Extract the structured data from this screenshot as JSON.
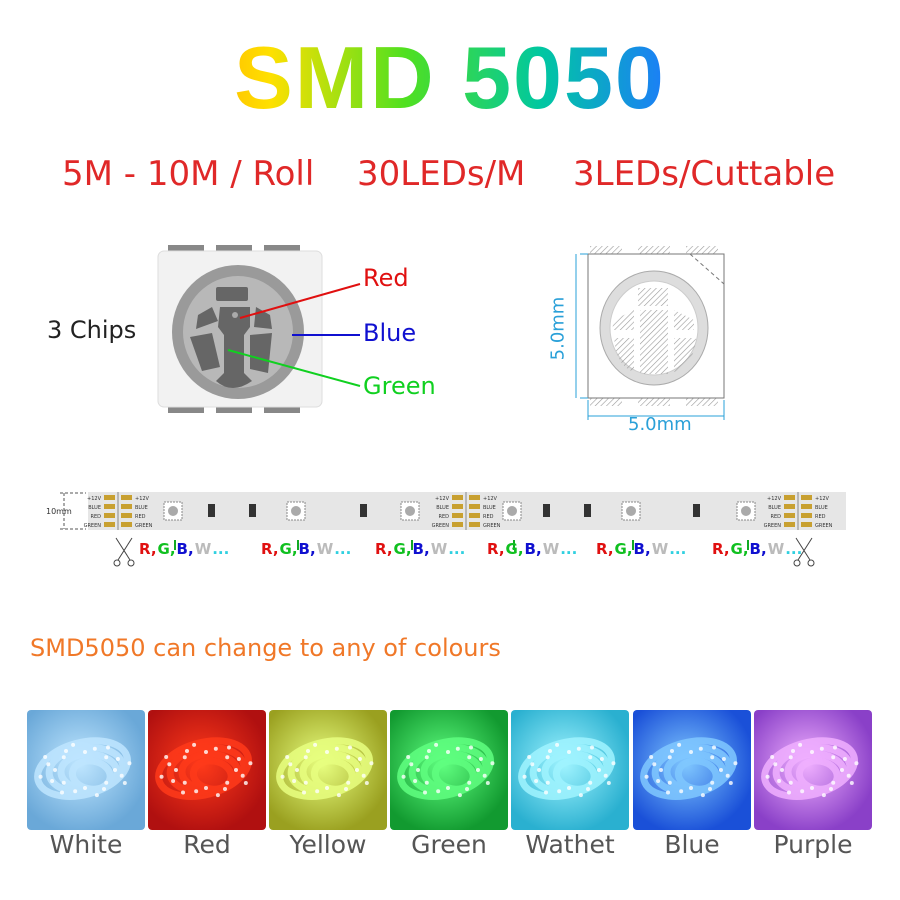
{
  "title": "SMD 5050",
  "specs": [
    "5M - 10M / Roll",
    "30LEDs/M",
    "3LEDs/Cuttable"
  ],
  "chip": {
    "chips_label": "3 Chips",
    "red_label": "Red",
    "blue_label": "Blue",
    "green_label": "Green",
    "red_color": "#e01010",
    "blue_color": "#1010d0",
    "green_color": "#10d020"
  },
  "dimensions": {
    "height_label": "5.0mm",
    "width_label": "5.0mm",
    "color": "#2aa0d8"
  },
  "strip": {
    "width_label": "10mm",
    "pads": [
      "+12V",
      "BLUE",
      "RED",
      "GREEN"
    ],
    "rgbw": {
      "r": "R,",
      "g": "G,",
      "b": "B,",
      "w": "W",
      "dots": "..."
    }
  },
  "tagline": "SMD5050 can change to any of colours",
  "colours": [
    {
      "label": "White",
      "color": "#bfe6ff",
      "bg": "#6aa8d8"
    },
    {
      "label": "Red",
      "color": "#ff3a1a",
      "bg": "#b01010"
    },
    {
      "label": "Yellow",
      "color": "#e8ff80",
      "bg": "#9aa020"
    },
    {
      "label": "Green",
      "color": "#60ff80",
      "bg": "#129a30"
    },
    {
      "label": "Wathet",
      "color": "#a0f4ff",
      "bg": "#2ab0d0"
    },
    {
      "label": "Blue",
      "color": "#80c8ff",
      "bg": "#1a50d8"
    },
    {
      "label": "Purple",
      "color": "#f0b0ff",
      "bg": "#8a40c8"
    }
  ]
}
